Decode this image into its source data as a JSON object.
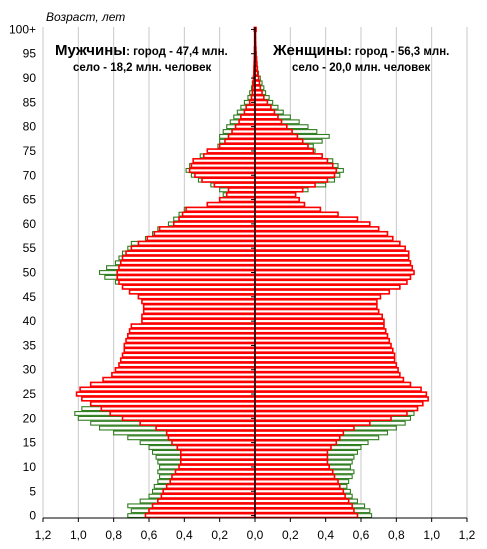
{
  "chart_data": {
    "type": "bar",
    "orientation": "horizontal-pyramid",
    "y_axis_title": "Возраст, лет",
    "y_ticks": [
      "0",
      "5",
      "10",
      "15",
      "20",
      "25",
      "30",
      "35",
      "40",
      "45",
      "50",
      "55",
      "60",
      "65",
      "70",
      "75",
      "80",
      "85",
      "90",
      "95",
      "100+"
    ],
    "x_ticks": [
      "1,2",
      "1,0",
      "0,8",
      "0,6",
      "0,4",
      "0,2",
      "0,0",
      "0,2",
      "0,4",
      "0,6",
      "0,8",
      "1,0",
      "1,2"
    ],
    "xlim": [
      -1.2,
      1.2
    ],
    "ylim": [
      0,
      101
    ],
    "grid": true,
    "legend_text": {
      "men_title": "Мужчины",
      "men_line1": ": город - 47,4 млн.",
      "men_line2": "село - 18,2 млн. человек",
      "women_title": "Женщины",
      "women_line1": ": город - 56,3 млн.",
      "women_line2": "село - 20,0 млн. человек"
    },
    "series_colors": {
      "urban": "#ff0000",
      "rural": "#2f7d1f",
      "fill": "#ffffff"
    },
    "series": [
      {
        "name": "urban",
        "side": "men",
        "values": [
          0.62,
          0.6,
          0.58,
          0.55,
          0.53,
          0.52,
          0.5,
          0.48,
          0.47,
          0.45,
          0.43,
          0.42,
          0.42,
          0.42,
          0.44,
          0.47,
          0.49,
          0.5,
          0.56,
          0.65,
          0.75,
          0.82,
          0.87,
          0.93,
          0.98,
          1.01,
          0.99,
          0.93,
          0.86,
          0.81,
          0.79,
          0.77,
          0.76,
          0.75,
          0.74,
          0.74,
          0.73,
          0.72,
          0.71,
          0.7,
          0.64,
          0.64,
          0.63,
          0.63,
          0.64,
          0.66,
          0.71,
          0.75,
          0.77,
          0.78,
          0.78,
          0.77,
          0.76,
          0.75,
          0.73,
          0.7,
          0.66,
          0.61,
          0.57,
          0.54,
          0.46,
          0.43,
          0.41,
          0.39,
          0.27,
          0.2,
          0.16,
          0.15,
          0.23,
          0.3,
          0.34,
          0.37,
          0.36,
          0.35,
          0.29,
          0.27,
          0.2,
          0.17,
          0.15,
          0.13,
          0.11,
          0.09,
          0.08,
          0.06,
          0.05,
          0.03,
          0.02,
          0.015,
          0.012,
          0.01,
          0.008,
          0.007,
          0.006,
          0.005,
          0.004,
          0.003,
          0.003,
          0.002,
          0.002,
          0.002,
          0.004
        ]
      },
      {
        "name": "rural",
        "side": "men",
        "values": [
          0.72,
          0.7,
          0.72,
          0.65,
          0.6,
          0.58,
          0.57,
          0.55,
          0.54,
          0.55,
          0.54,
          0.55,
          0.56,
          0.58,
          0.6,
          0.65,
          0.72,
          0.8,
          0.88,
          0.93,
          1.0,
          1.02,
          0.98,
          0.92,
          0.88,
          0.78,
          0.74,
          0.72,
          0.71,
          0.7,
          0.69,
          0.68,
          0.68,
          0.67,
          0.67,
          0.66,
          0.65,
          0.65,
          0.64,
          0.64,
          0.63,
          0.63,
          0.62,
          0.62,
          0.62,
          0.63,
          0.67,
          0.74,
          0.79,
          0.85,
          0.88,
          0.84,
          0.79,
          0.77,
          0.75,
          0.72,
          0.7,
          0.62,
          0.58,
          0.55,
          0.49,
          0.46,
          0.43,
          0.4,
          0.24,
          0.2,
          0.18,
          0.2,
          0.25,
          0.32,
          0.36,
          0.39,
          0.37,
          0.35,
          0.31,
          0.25,
          0.21,
          0.2,
          0.2,
          0.18,
          0.16,
          0.14,
          0.12,
          0.1,
          0.08,
          0.06,
          0.04,
          0.03,
          0.02,
          0.015,
          0.01,
          0.008,
          0.006,
          0.005,
          0.004,
          0.003,
          0.003,
          0.002,
          0.002,
          0.002,
          0.004
        ]
      },
      {
        "name": "urban",
        "side": "women",
        "values": [
          0.58,
          0.56,
          0.55,
          0.53,
          0.51,
          0.5,
          0.48,
          0.47,
          0.45,
          0.44,
          0.42,
          0.41,
          0.41,
          0.41,
          0.43,
          0.46,
          0.48,
          0.5,
          0.56,
          0.65,
          0.77,
          0.86,
          0.92,
          0.95,
          0.98,
          0.97,
          0.94,
          0.88,
          0.84,
          0.82,
          0.81,
          0.8,
          0.79,
          0.79,
          0.78,
          0.77,
          0.76,
          0.75,
          0.74,
          0.73,
          0.73,
          0.72,
          0.7,
          0.69,
          0.69,
          0.71,
          0.76,
          0.82,
          0.86,
          0.88,
          0.9,
          0.89,
          0.88,
          0.87,
          0.87,
          0.85,
          0.82,
          0.78,
          0.75,
          0.7,
          0.65,
          0.58,
          0.47,
          0.37,
          0.28,
          0.25,
          0.23,
          0.27,
          0.34,
          0.41,
          0.45,
          0.46,
          0.44,
          0.41,
          0.38,
          0.33,
          0.3,
          0.27,
          0.24,
          0.21,
          0.18,
          0.15,
          0.13,
          0.11,
          0.09,
          0.07,
          0.05,
          0.04,
          0.03,
          0.025,
          0.02,
          0.015,
          0.012,
          0.01,
          0.008,
          0.006,
          0.005,
          0.004,
          0.003,
          0.003,
          0.006
        ]
      },
      {
        "name": "rural",
        "side": "women",
        "values": [
          0.66,
          0.65,
          0.62,
          0.58,
          0.55,
          0.54,
          0.52,
          0.53,
          0.55,
          0.56,
          0.54,
          0.55,
          0.56,
          0.58,
          0.6,
          0.64,
          0.7,
          0.75,
          0.8,
          0.85,
          0.88,
          0.9,
          0.85,
          0.77,
          0.72,
          0.7,
          0.69,
          0.68,
          0.67,
          0.67,
          0.66,
          0.65,
          0.64,
          0.64,
          0.63,
          0.63,
          0.62,
          0.62,
          0.62,
          0.63,
          0.64,
          0.65,
          0.66,
          0.67,
          0.68,
          0.7,
          0.74,
          0.78,
          0.82,
          0.84,
          0.85,
          0.83,
          0.81,
          0.79,
          0.77,
          0.75,
          0.72,
          0.7,
          0.66,
          0.6,
          0.5,
          0.42,
          0.3,
          0.24,
          0.22,
          0.21,
          0.22,
          0.3,
          0.4,
          0.45,
          0.48,
          0.5,
          0.47,
          0.44,
          0.38,
          0.34,
          0.33,
          0.38,
          0.42,
          0.35,
          0.3,
          0.25,
          0.2,
          0.16,
          0.13,
          0.1,
          0.08,
          0.06,
          0.05,
          0.04,
          0.03,
          0.02,
          0.015,
          0.012,
          0.01,
          0.008,
          0.006,
          0.005,
          0.004,
          0.003,
          0.006
        ]
      }
    ]
  }
}
